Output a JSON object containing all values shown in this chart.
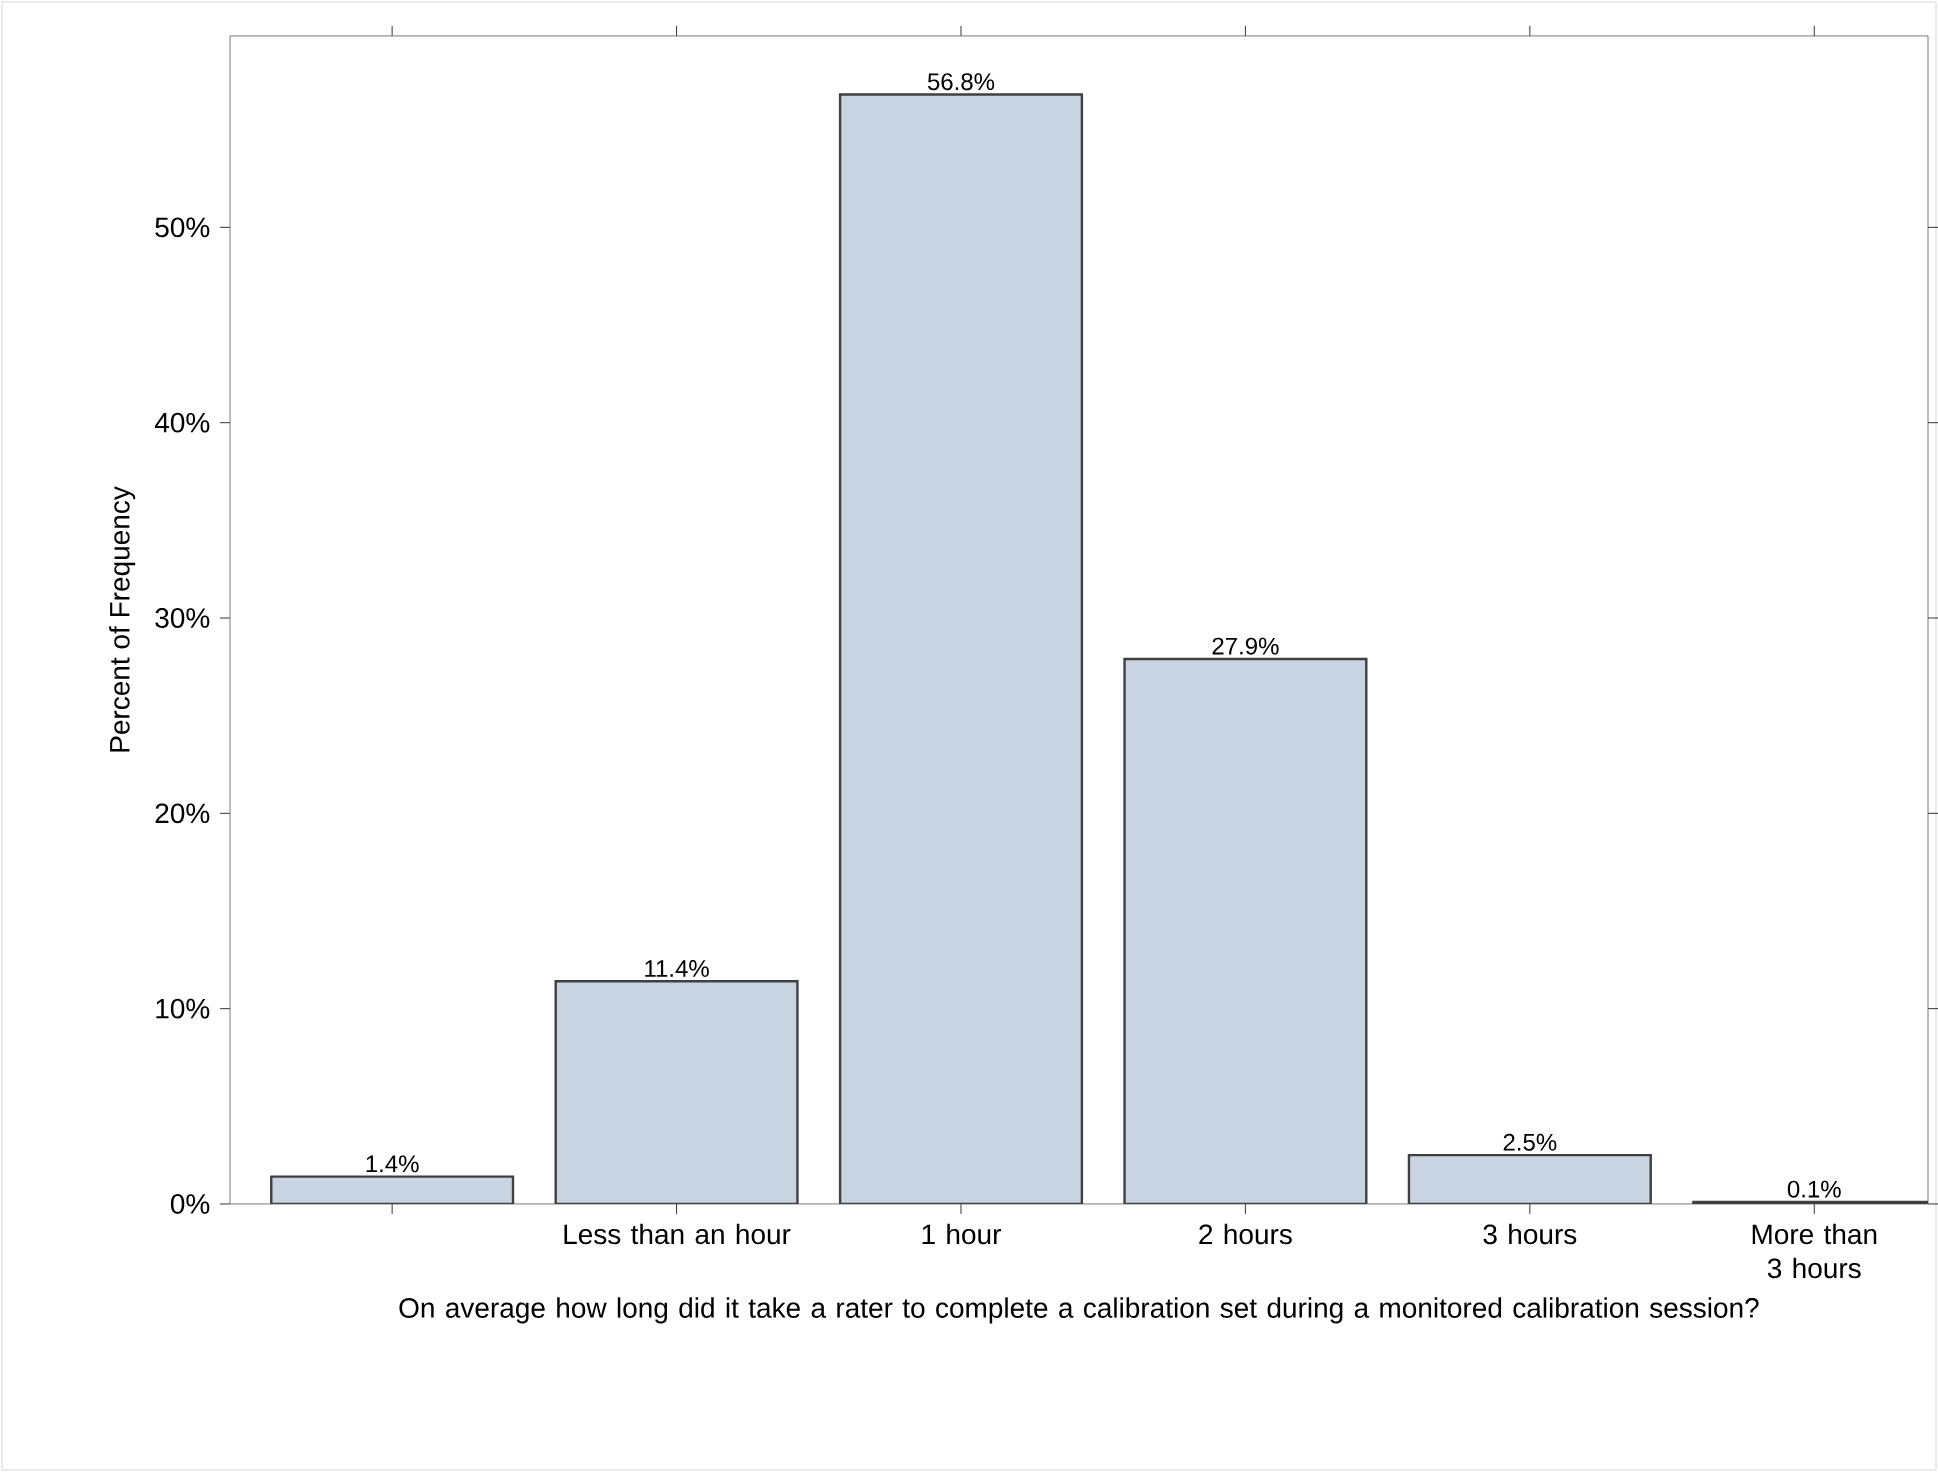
{
  "chart_data": {
    "type": "bar",
    "xlabel": "On average how long did it take a rater to complete a calibration set during a monitored calibration session?",
    "ylabel": "Percent of Frequency",
    "categories": [
      null,
      "Less than an hour",
      "1 hour",
      "2 hours",
      "3 hours",
      "More than 3 hours"
    ],
    "values": [
      1.4,
      11.4,
      56.8,
      27.9,
      2.5,
      0.1
    ],
    "value_labels": [
      "1.4%",
      "11.4%",
      "56.8%",
      "27.9%",
      "2.5%",
      "0.1%"
    ],
    "color": "#c9d4e3",
    "ylim": [
      0,
      59.8
    ],
    "yticks": [
      {
        "value": 0,
        "label": "0%"
      },
      {
        "value": 10,
        "label": "10%"
      },
      {
        "value": 20,
        "label": "20%"
      },
      {
        "value": 30,
        "label": "30%"
      },
      {
        "value": 40,
        "label": "40%"
      },
      {
        "value": 50,
        "label": "50%"
      }
    ],
    "grid": false
  }
}
